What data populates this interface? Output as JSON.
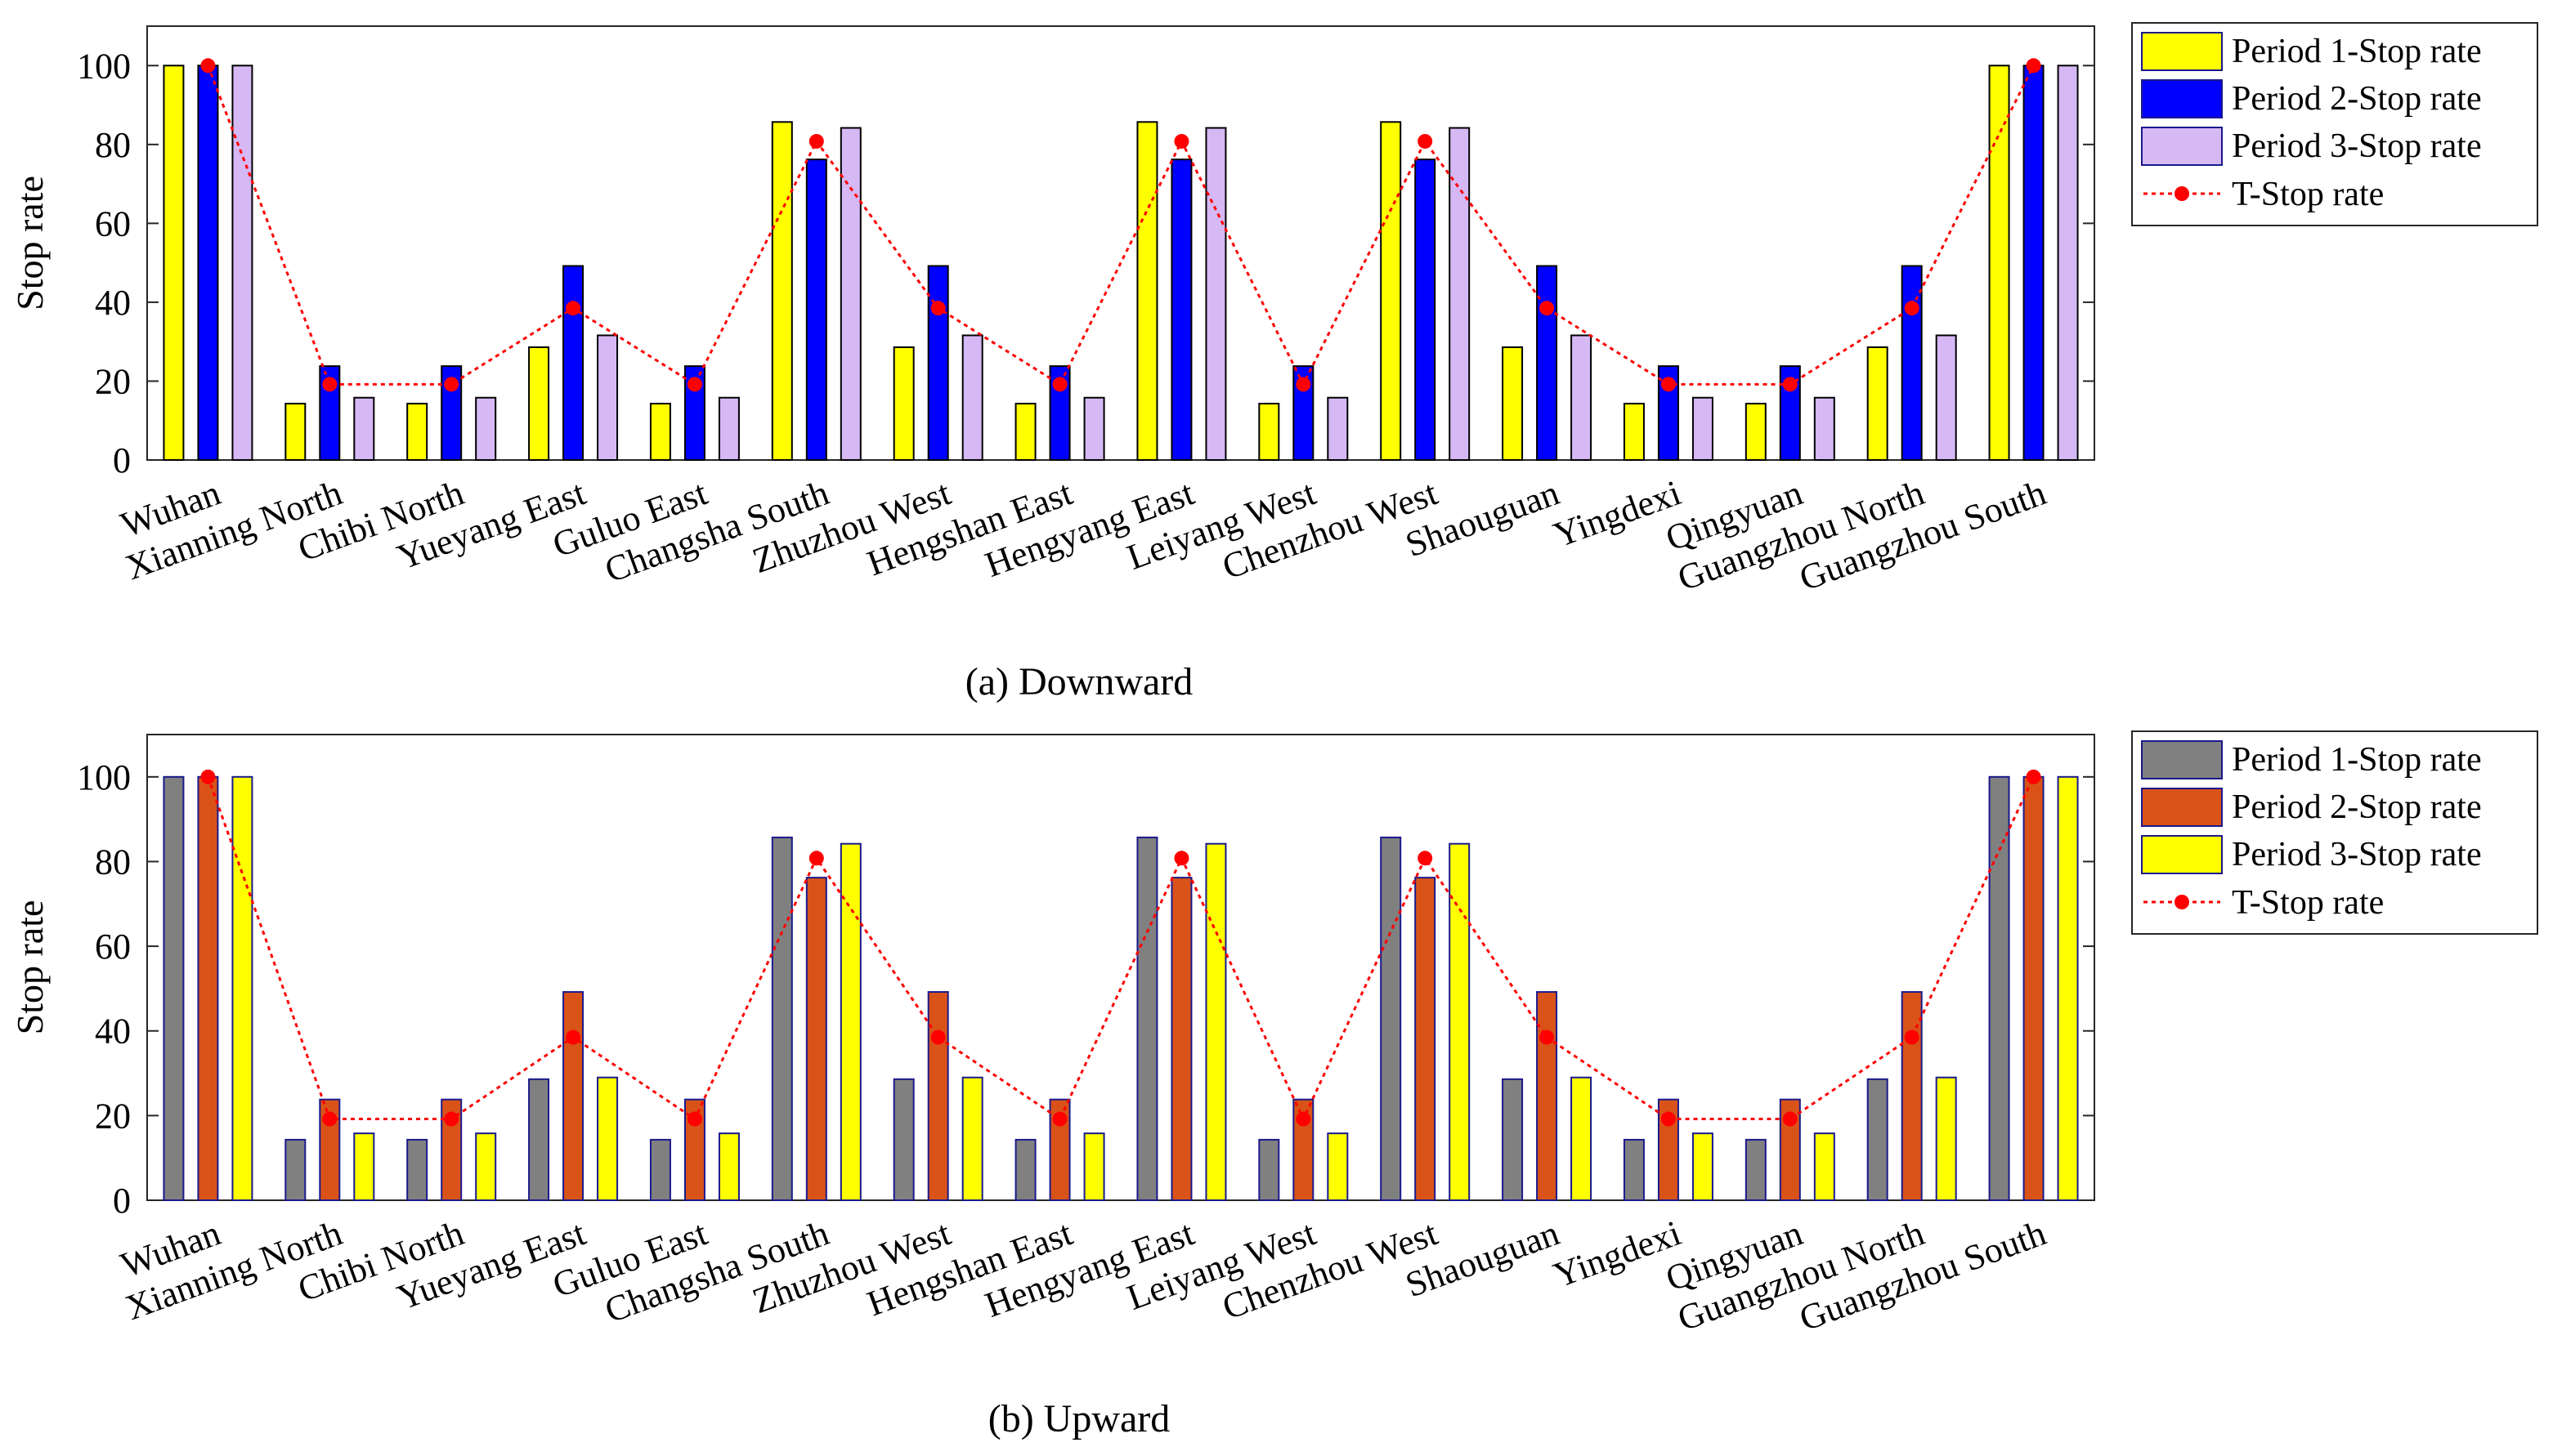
{
  "chart_data": [
    {
      "type": "bar",
      "subtitle": "(a) Downward",
      "ylabel": "Stop rate",
      "ylim": [
        0,
        110
      ],
      "yticks": [
        0,
        20,
        40,
        60,
        80,
        100
      ],
      "categories": [
        "Wuhan",
        "Xianning North",
        "Chibi North",
        "Yueyang East",
        "Guluo East",
        "Changsha South",
        "Zhuzhou West",
        "Hengshan East",
        "Hengyang East",
        "Leiyang West",
        "Chenzhou West",
        "Shaouguan",
        "Yingdexi",
        "Qingyuan",
        "Guangzhou North",
        "Guangzhou South"
      ],
      "series": [
        {
          "name": "Period 1-Stop rate",
          "color": "#ffff00",
          "values": [
            100,
            14.3,
            14.3,
            28.6,
            14.3,
            85.7,
            28.6,
            14.3,
            85.7,
            14.3,
            85.7,
            28.6,
            14.3,
            14.3,
            28.6,
            100
          ]
        },
        {
          "name": "Period 2-Stop rate",
          "color": "#0000ff",
          "values": [
            100,
            23.8,
            23.8,
            49.2,
            23.8,
            76.2,
            49.2,
            23.8,
            76.2,
            23.8,
            76.2,
            49.2,
            23.8,
            23.8,
            49.2,
            100
          ]
        },
        {
          "name": "Period 3-Stop rate",
          "color": "#d6b8f5",
          "values": [
            100,
            15.8,
            15.8,
            31.6,
            15.8,
            84.2,
            31.6,
            15.8,
            84.2,
            15.8,
            84.2,
            31.6,
            15.8,
            15.8,
            31.6,
            100
          ]
        }
      ],
      "line": {
        "name": "T-Stop rate",
        "color": "#ff0000",
        "values": [
          100,
          19.2,
          19.2,
          38.5,
          19.2,
          80.8,
          38.5,
          19.2,
          80.8,
          19.2,
          80.8,
          38.5,
          19.2,
          19.2,
          38.5,
          100
        ]
      },
      "legend": "top-right-outside"
    },
    {
      "type": "bar",
      "subtitle": "(b) Upward",
      "ylabel": "Stop rate",
      "ylim": [
        0,
        110
      ],
      "yticks": [
        0,
        20,
        40,
        60,
        80,
        100
      ],
      "categories": [
        "Wuhan",
        "Xianning North",
        "Chibi North",
        "Yueyang East",
        "Guluo East",
        "Changsha South",
        "Zhuzhou West",
        "Hengshan East",
        "Hengyang East",
        "Leiyang West",
        "Chenzhou West",
        "Shaouguan",
        "Yingdexi",
        "Qingyuan",
        "Guangzhou North",
        "Guangzhou South"
      ],
      "series": [
        {
          "name": "Period 1-Stop rate",
          "color": "#808080",
          "values": [
            100,
            14.3,
            14.3,
            28.6,
            14.3,
            85.7,
            28.6,
            14.3,
            85.7,
            14.3,
            85.7,
            28.6,
            14.3,
            14.3,
            28.6,
            100
          ]
        },
        {
          "name": "Period 2-Stop rate",
          "color": "#d95319",
          "values": [
            100,
            23.8,
            23.8,
            49.2,
            23.8,
            76.2,
            49.2,
            23.8,
            76.2,
            23.8,
            76.2,
            49.2,
            23.8,
            23.8,
            49.2,
            100
          ]
        },
        {
          "name": "Period 3-Stop rate",
          "color": "#ffff00",
          "values": [
            100,
            15.8,
            15.8,
            29.0,
            15.8,
            84.2,
            29.0,
            15.8,
            84.2,
            15.8,
            84.2,
            29.0,
            15.8,
            15.8,
            29.0,
            100
          ]
        }
      ],
      "line": {
        "name": "T-Stop rate",
        "color": "#ff0000",
        "values": [
          100,
          19.2,
          19.2,
          38.5,
          19.2,
          80.8,
          38.5,
          19.2,
          80.8,
          19.2,
          80.8,
          38.5,
          19.2,
          19.2,
          38.5,
          100
        ]
      },
      "legend": "top-right-outside"
    }
  ]
}
